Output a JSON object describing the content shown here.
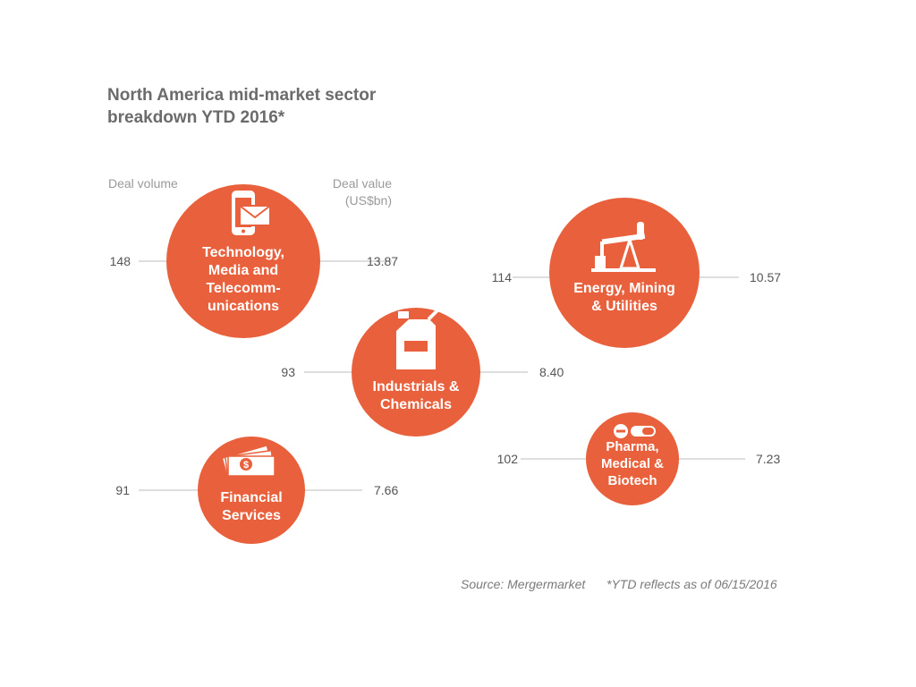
{
  "title_lines": [
    "North America mid-market sector",
    "breakdown YTD 2016*"
  ],
  "columns": {
    "volume_label": "Deal volume",
    "value_label_lines": [
      "Deal value",
      "(US$bn)"
    ]
  },
  "footer": {
    "source": "Source: Mergermarket",
    "note": "*YTD reflects as of 06/15/2016"
  },
  "colors": {
    "bubble": "#e8613c",
    "connector": "#bdbdbd",
    "number": "#555555",
    "bubble_text": "#ffffff"
  },
  "chart_data": {
    "type": "bubble",
    "title": "North America mid-market sector breakdown YTD 2016*",
    "metrics": [
      "Deal volume",
      "Deal value (US$bn)"
    ],
    "sectors": [
      {
        "label_lines": [
          "Technology,",
          "Media and",
          "Telecomm-",
          "unications"
        ],
        "icon": "smartphone-mail-icon",
        "deal_volume": 148,
        "deal_value": 13.87,
        "volume_text": "148",
        "value_text": "13.87"
      },
      {
        "label_lines": [
          "Energy, Mining",
          "& Utilities"
        ],
        "icon": "oil-pump-icon",
        "deal_volume": 114,
        "deal_value": 10.57,
        "volume_text": "114",
        "value_text": "10.57"
      },
      {
        "label_lines": [
          "Industrials &",
          "Chemicals"
        ],
        "icon": "canister-icon",
        "deal_volume": 93,
        "deal_value": 8.4,
        "volume_text": "93",
        "value_text": "8.40"
      },
      {
        "label_lines": [
          "Financial",
          "Services"
        ],
        "icon": "money-stack-icon",
        "deal_volume": 91,
        "deal_value": 7.66,
        "volume_text": "91",
        "value_text": "7.66"
      },
      {
        "label_lines": [
          "Pharma,",
          "Medical &",
          "Biotech"
        ],
        "icon": "pills-icon",
        "deal_volume": 102,
        "deal_value": 7.23,
        "volume_text": "102",
        "value_text": "7.23"
      }
    ]
  }
}
